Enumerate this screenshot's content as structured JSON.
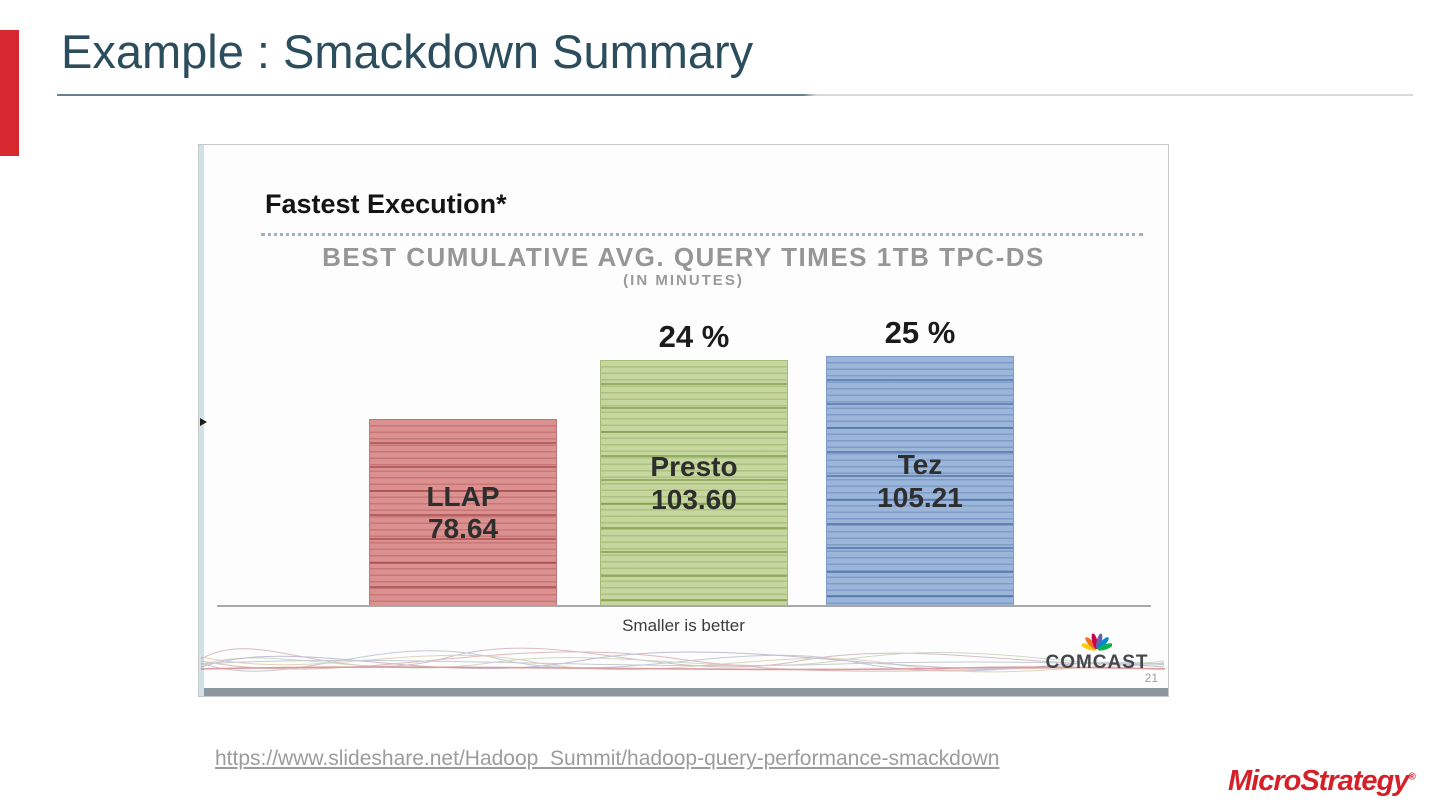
{
  "page": {
    "title": "Example : Smackdown Summary",
    "accent_color": "#d7282f",
    "title_color": "#2b4d5e"
  },
  "embedded_slide": {
    "heading": "Fastest Execution*",
    "subtitle": "BEST CUMULATIVE AVG. QUERY TIMES 1TB TPC-DS",
    "subtitle_unit": "(IN MINUTES)",
    "note": "Smaller is better",
    "brand": "COMCAST",
    "page_number": "21"
  },
  "chart_data": {
    "type": "bar",
    "title": "BEST CUMULATIVE AVG. QUERY TIMES 1TB TPC-DS",
    "subtitle": "(IN MINUTES)",
    "orientation": "vertical",
    "categories": [
      "LLAP",
      "Presto",
      "Tez"
    ],
    "values": [
      78.64,
      103.6,
      105.21
    ],
    "value_labels": [
      "78.64",
      "103.60",
      "105.21"
    ],
    "pct_labels": [
      "",
      "24 %",
      "25 %"
    ],
    "note": "Smaller is better",
    "ylim": [
      0,
      110
    ],
    "grid": false,
    "colors": [
      {
        "name": "red",
        "base": "#DC9191",
        "stripe": "rgba(170,80,80,0.40)",
        "stripe_bold": "rgba(150,55,55,0.55)",
        "border": "#BC7878"
      },
      {
        "name": "green",
        "base": "#C5D69E",
        "stripe": "rgba(130,155,70,0.35)",
        "stripe_bold": "rgba(110,140,50,0.55)",
        "border": "#A6BC7A"
      },
      {
        "name": "blue",
        "base": "#9BB6D9",
        "stripe": "rgba(70,110,170,0.35)",
        "stripe_bold": "rgba(55,95,155,0.55)",
        "border": "#7D9BC6"
      }
    ]
  },
  "footer": {
    "link": "https://www.slideshare.net/Hadoop_Summit/hadoop-query-performance-smackdown",
    "brand": "MicroStrategy",
    "brand_mark": "®"
  }
}
